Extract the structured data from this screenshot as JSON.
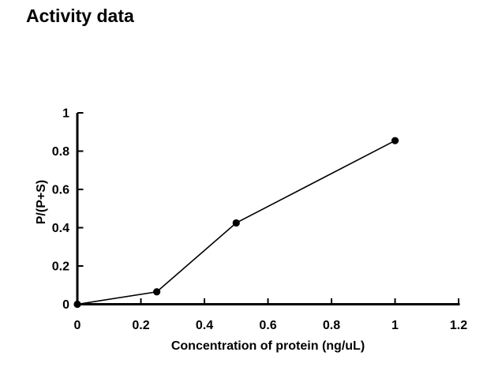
{
  "header": {
    "title": "Activity data"
  },
  "chart_data": {
    "type": "line",
    "title": "Activity data",
    "xlabel": "Concentration of protein (ng/uL)",
    "ylabel": "P/(P+S)",
    "x": [
      0,
      0.25,
      0.5,
      1
    ],
    "y": [
      0,
      0.065,
      0.425,
      0.855
    ],
    "xlim": [
      0,
      1.2
    ],
    "ylim": [
      0,
      1
    ],
    "xticks": [
      0,
      0.2,
      0.4,
      0.6,
      0.8,
      1,
      1.2
    ],
    "yticks": [
      0,
      0.2,
      0.4,
      0.6,
      0.8,
      1
    ],
    "grid": false,
    "legend": false,
    "line_color": "#000000",
    "marker": "filled-circle",
    "marker_color": "#000000",
    "axis_color": "#000000",
    "background_color": "#ffffff"
  }
}
